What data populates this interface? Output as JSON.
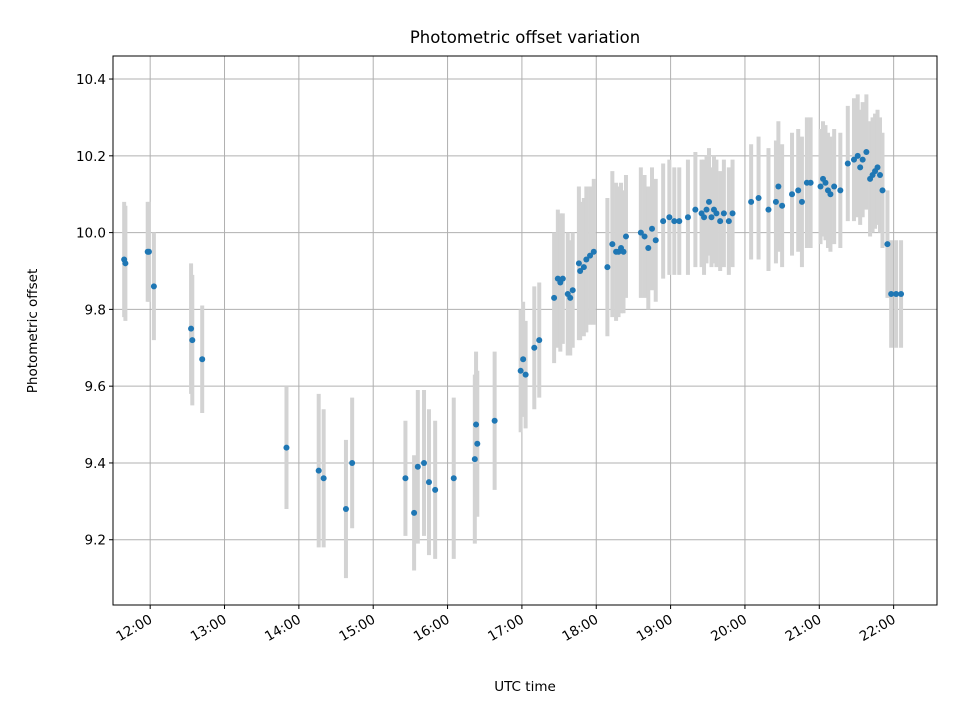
{
  "chart_data": {
    "type": "scatter",
    "title": "Photometric offset variation",
    "xlabel": "UTC time",
    "ylabel": "Photometric offset",
    "x_ticks": [
      "12:00",
      "13:00",
      "14:00",
      "15:00",
      "16:00",
      "17:00",
      "18:00",
      "19:00",
      "20:00",
      "21:00",
      "22:00"
    ],
    "y_ticks": [
      "9.2",
      "9.4",
      "9.6",
      "9.8",
      "10.0",
      "10.2",
      "10.4"
    ],
    "xlim": [
      "11:30",
      "22:35"
    ],
    "ylim": [
      9.03,
      10.46
    ],
    "grid": true,
    "colors": {
      "point": "#1f77b4",
      "errorbar": "#d3d3d3",
      "grid": "#b0b0b0"
    },
    "series": [
      {
        "x": [
          "11:39",
          "11:40",
          "11:58",
          "11:59",
          "12:03",
          "12:33",
          "12:34",
          "12:42",
          "13:50",
          "14:16",
          "14:20",
          "14:38",
          "14:43",
          "15:26",
          "15:33",
          "15:36",
          "15:41",
          "15:45",
          "15:50",
          "16:05",
          "16:22",
          "16:23",
          "16:24",
          "16:38",
          "16:59",
          "17:01",
          "17:03",
          "17:10",
          "17:14",
          "17:26",
          "17:29",
          "17:31",
          "17:33",
          "17:37",
          "17:39",
          "17:41",
          "17:46",
          "17:47",
          "17:50",
          "17:52",
          "17:55",
          "17:58",
          "18:09",
          "18:13",
          "18:16",
          "18:18",
          "18:20",
          "18:22",
          "18:24",
          "18:36",
          "18:39",
          "18:42",
          "18:45",
          "18:48",
          "18:54",
          "18:59",
          "19:03",
          "19:07",
          "19:14",
          "19:20",
          "19:25",
          "19:27",
          "19:29",
          "19:31",
          "19:33",
          "19:35",
          "19:37",
          "19:40",
          "19:43",
          "19:47",
          "19:50",
          "20:05",
          "20:11",
          "20:19",
          "20:25",
          "20:27",
          "20:30",
          "20:38",
          "20:43",
          "20:46",
          "20:50",
          "20:53",
          "21:01",
          "21:03",
          "21:05",
          "21:07",
          "21:09",
          "21:12",
          "21:17",
          "21:23",
          "21:28",
          "21:31",
          "21:33",
          "21:35",
          "21:38",
          "21:41",
          "21:43",
          "21:45",
          "21:47",
          "21:49",
          "21:51",
          "21:55",
          "21:58",
          "22:02",
          "22:06"
        ],
        "y": [
          9.93,
          9.92,
          9.95,
          9.95,
          9.86,
          9.75,
          9.72,
          9.67,
          9.44,
          9.38,
          9.36,
          9.28,
          9.4,
          9.36,
          9.27,
          9.39,
          9.4,
          9.35,
          9.33,
          9.36,
          9.41,
          9.5,
          9.45,
          9.51,
          9.64,
          9.67,
          9.63,
          9.7,
          9.72,
          9.83,
          9.88,
          9.87,
          9.88,
          9.84,
          9.83,
          9.85,
          9.92,
          9.9,
          9.91,
          9.93,
          9.94,
          9.95,
          9.91,
          9.97,
          9.95,
          9.95,
          9.96,
          9.95,
          9.99,
          10.0,
          9.99,
          9.96,
          10.01,
          9.98,
          10.03,
          10.04,
          10.03,
          10.03,
          10.04,
          10.06,
          10.05,
          10.04,
          10.06,
          10.08,
          10.04,
          10.06,
          10.05,
          10.03,
          10.05,
          10.03,
          10.05,
          10.08,
          10.09,
          10.06,
          10.08,
          10.12,
          10.07,
          10.1,
          10.11,
          10.08,
          10.13,
          10.13,
          10.12,
          10.14,
          10.13,
          10.11,
          10.1,
          10.12,
          10.11,
          10.18,
          10.19,
          10.2,
          10.17,
          10.19,
          10.21,
          10.14,
          10.15,
          10.16,
          10.17,
          10.15,
          10.11,
          9.97,
          9.84,
          9.84,
          9.84
        ],
        "err": [
          0.15,
          0.15,
          0.13,
          0.13,
          0.14,
          0.17,
          0.17,
          0.14,
          0.16,
          0.2,
          0.18,
          0.18,
          0.17,
          0.15,
          0.15,
          0.2,
          0.19,
          0.19,
          0.18,
          0.21,
          0.22,
          0.19,
          0.19,
          0.18,
          0.16,
          0.15,
          0.14,
          0.16,
          0.15,
          0.17,
          0.18,
          0.18,
          0.17,
          0.16,
          0.15,
          0.15,
          0.2,
          0.18,
          0.18,
          0.19,
          0.18,
          0.19,
          0.18,
          0.19,
          0.18,
          0.17,
          0.17,
          0.16,
          0.16,
          0.17,
          0.16,
          0.16,
          0.16,
          0.16,
          0.15,
          0.15,
          0.14,
          0.14,
          0.15,
          0.15,
          0.14,
          0.15,
          0.14,
          0.14,
          0.13,
          0.14,
          0.14,
          0.13,
          0.14,
          0.14,
          0.14,
          0.15,
          0.16,
          0.16,
          0.16,
          0.17,
          0.16,
          0.16,
          0.16,
          0.17,
          0.17,
          0.17,
          0.15,
          0.15,
          0.15,
          0.15,
          0.15,
          0.15,
          0.15,
          0.15,
          0.16,
          0.16,
          0.15,
          0.15,
          0.15,
          0.15,
          0.15,
          0.15,
          0.15,
          0.15,
          0.15,
          0.14,
          0.14,
          0.14,
          0.14
        ]
      }
    ]
  }
}
